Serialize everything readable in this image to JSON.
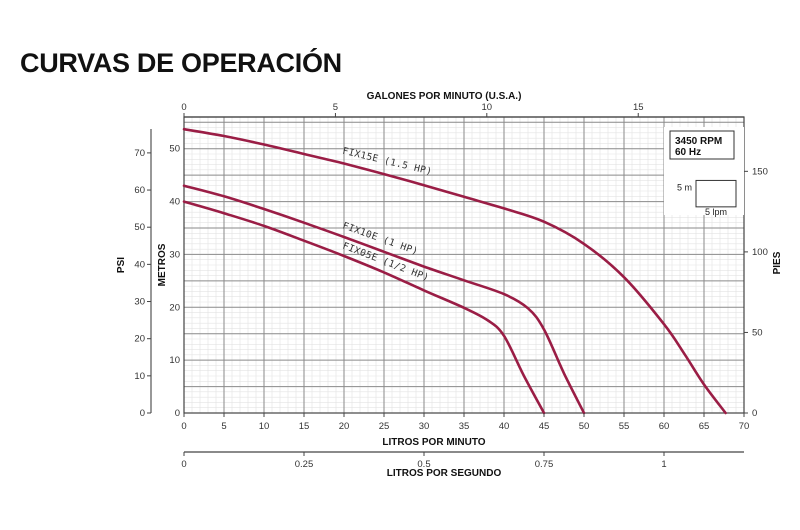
{
  "page": {
    "title": "CURVAS DE OPERACIÓN"
  },
  "chart_data": {
    "type": "line",
    "xlabel": "LITROS POR MINUTO",
    "xlim": [
      0,
      70
    ],
    "x_ticks": [
      "0",
      "5",
      "10",
      "15",
      "20",
      "25",
      "30",
      "35",
      "40",
      "45",
      "50",
      "55",
      "60",
      "65",
      "70"
    ],
    "top_axis": {
      "label": "GALONES POR MINUTO (U.S.A.)",
      "ticks": [
        "0",
        "5",
        "10",
        "15"
      ],
      "ticks_value_lpm": [
        0,
        18.93,
        37.85,
        56.78
      ]
    },
    "second_bottom_axis": {
      "label": "LITROS POR SEGUNDO",
      "ticks": [
        "0",
        "0.25",
        "0.5",
        "0.75",
        "1"
      ],
      "ticks_value_lpm": [
        0,
        15,
        30,
        45,
        60
      ]
    },
    "ylabel": "METROS",
    "ylim": [
      0,
      56
    ],
    "y_ticks": [
      "0",
      "10",
      "20",
      "30",
      "40",
      "50"
    ],
    "left_axis": {
      "label": "PSI",
      "ticks": [
        "0",
        "10",
        "20",
        "30",
        "40",
        "50",
        "60",
        "70"
      ],
      "ticks_value_m": [
        0,
        7.03,
        14.06,
        21.09,
        28.12,
        35.15,
        42.18,
        49.21
      ]
    },
    "right_axis": {
      "label": "PIES",
      "ticks": [
        "0",
        "50",
        "100",
        "150"
      ],
      "ticks_value_m": [
        0,
        15.24,
        30.48,
        45.72
      ]
    },
    "grid": true,
    "legend_box": {
      "speed": "3450 RPM",
      "frequency": "60 Hz",
      "grid_height": "5 m",
      "grid_width": "5 lpm"
    },
    "series": [
      {
        "name": "FIX15E (1.5 HP)",
        "color": "#9a1d45",
        "x": [
          0,
          5,
          10,
          15,
          20,
          25,
          30,
          35,
          40,
          45,
          50,
          55,
          60,
          62.5,
          65,
          67.7
        ],
        "y": [
          53.7,
          52.4,
          50.8,
          49.0,
          47.2,
          45.2,
          43.1,
          40.9,
          38.7,
          36.2,
          32.0,
          25.7,
          16.8,
          11.3,
          5.4,
          0
        ]
      },
      {
        "name": "FIX10E (1 HP)",
        "color": "#9a1d45",
        "x": [
          0,
          5,
          10,
          15,
          20,
          25,
          30,
          35,
          40,
          43,
          45,
          47.5,
          50
        ],
        "y": [
          43.0,
          41.0,
          38.6,
          36.0,
          33.3,
          30.5,
          27.7,
          25.1,
          22.5,
          19.8,
          15.8,
          7.5,
          0
        ]
      },
      {
        "name": "FIX05E (1/2 HP)",
        "color": "#9a1d45",
        "x": [
          0,
          5,
          10,
          15,
          20,
          25,
          30,
          35,
          38,
          40,
          42.5,
          45
        ],
        "y": [
          40.0,
          37.8,
          35.4,
          32.6,
          29.7,
          26.6,
          23.2,
          19.9,
          17.5,
          14.6,
          7.0,
          0
        ]
      }
    ]
  }
}
